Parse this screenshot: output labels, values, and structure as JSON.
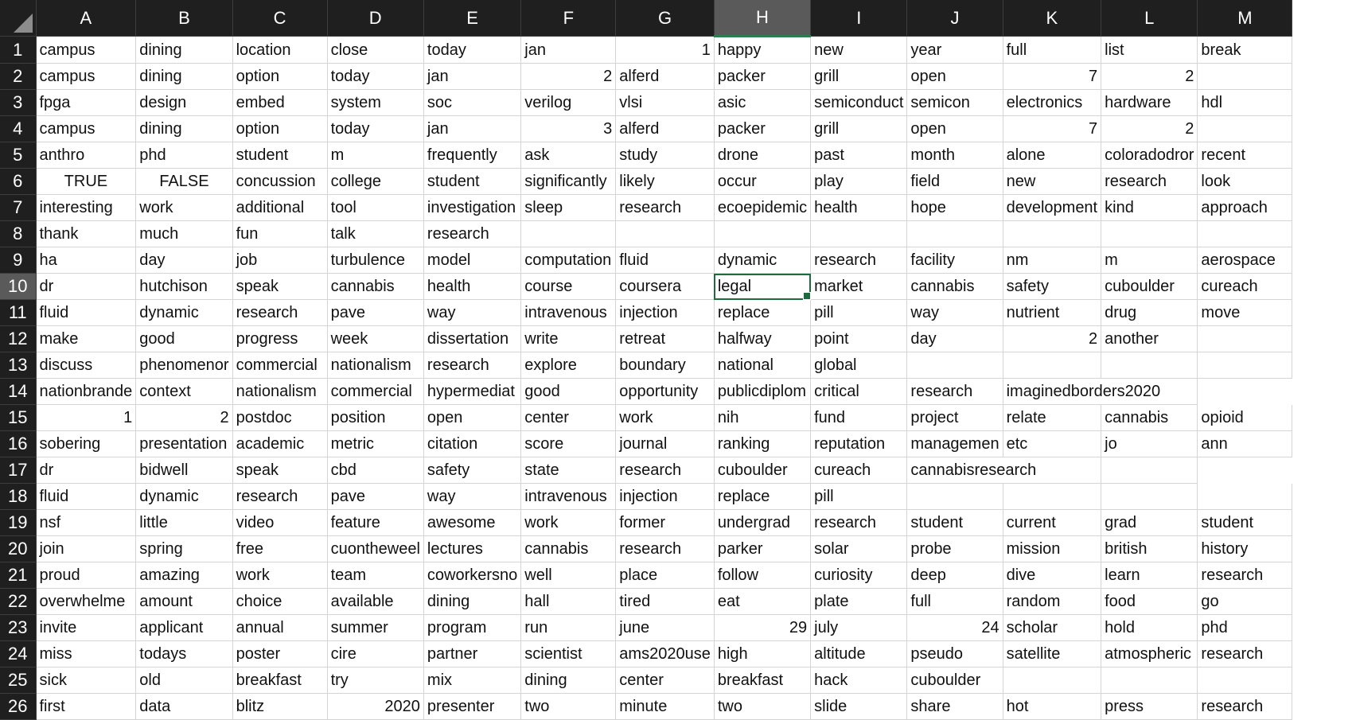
{
  "columns": [
    "A",
    "B",
    "C",
    "D",
    "E",
    "F",
    "G",
    "H",
    "I",
    "J",
    "K",
    "L",
    "M"
  ],
  "selected_column": "H",
  "selected_row": 10,
  "rows": [
    {
      "n": "1",
      "cells": [
        {
          "v": "campus"
        },
        {
          "v": "dining"
        },
        {
          "v": "location"
        },
        {
          "v": "close"
        },
        {
          "v": "today"
        },
        {
          "v": "jan"
        },
        {
          "v": "1",
          "t": "num"
        },
        {
          "v": "happy"
        },
        {
          "v": "new"
        },
        {
          "v": "year"
        },
        {
          "v": "full"
        },
        {
          "v": "list"
        },
        {
          "v": "break"
        }
      ]
    },
    {
      "n": "2",
      "cells": [
        {
          "v": "campus"
        },
        {
          "v": "dining"
        },
        {
          "v": "option"
        },
        {
          "v": "today"
        },
        {
          "v": "jan"
        },
        {
          "v": "2",
          "t": "num"
        },
        {
          "v": "alferd"
        },
        {
          "v": "packer"
        },
        {
          "v": "grill"
        },
        {
          "v": "open"
        },
        {
          "v": "7",
          "t": "num"
        },
        {
          "v": "2",
          "t": "num"
        },
        {
          "v": ""
        }
      ]
    },
    {
      "n": "3",
      "cells": [
        {
          "v": "fpga"
        },
        {
          "v": "design"
        },
        {
          "v": "embed"
        },
        {
          "v": "system"
        },
        {
          "v": "soc"
        },
        {
          "v": "verilog"
        },
        {
          "v": "vlsi"
        },
        {
          "v": "asic"
        },
        {
          "v": "semiconduct"
        },
        {
          "v": "semicon"
        },
        {
          "v": "electronics"
        },
        {
          "v": "hardware"
        },
        {
          "v": "hdl"
        }
      ]
    },
    {
      "n": "4",
      "cells": [
        {
          "v": "campus"
        },
        {
          "v": "dining"
        },
        {
          "v": "option"
        },
        {
          "v": "today"
        },
        {
          "v": "jan"
        },
        {
          "v": "3",
          "t": "num"
        },
        {
          "v": "alferd"
        },
        {
          "v": "packer"
        },
        {
          "v": "grill"
        },
        {
          "v": "open"
        },
        {
          "v": "7",
          "t": "num"
        },
        {
          "v": "2",
          "t": "num"
        },
        {
          "v": ""
        }
      ]
    },
    {
      "n": "5",
      "cells": [
        {
          "v": "anthro"
        },
        {
          "v": "phd"
        },
        {
          "v": "student"
        },
        {
          "v": "m"
        },
        {
          "v": "frequently"
        },
        {
          "v": "ask"
        },
        {
          "v": "study"
        },
        {
          "v": "drone"
        },
        {
          "v": "past"
        },
        {
          "v": "month"
        },
        {
          "v": "alone"
        },
        {
          "v": "coloradodror"
        },
        {
          "v": "recent"
        }
      ]
    },
    {
      "n": "6",
      "cells": [
        {
          "v": "TRUE",
          "t": "bool"
        },
        {
          "v": "FALSE",
          "t": "bool"
        },
        {
          "v": "concussion"
        },
        {
          "v": "college"
        },
        {
          "v": "student"
        },
        {
          "v": "significantly"
        },
        {
          "v": "likely"
        },
        {
          "v": "occur"
        },
        {
          "v": "play"
        },
        {
          "v": "field"
        },
        {
          "v": "new"
        },
        {
          "v": "research"
        },
        {
          "v": "look"
        }
      ]
    },
    {
      "n": "7",
      "cells": [
        {
          "v": "interesting"
        },
        {
          "v": "work"
        },
        {
          "v": "additional"
        },
        {
          "v": "tool"
        },
        {
          "v": "investigation"
        },
        {
          "v": "sleep"
        },
        {
          "v": "research"
        },
        {
          "v": "ecoepidemic"
        },
        {
          "v": "health"
        },
        {
          "v": "hope"
        },
        {
          "v": "development"
        },
        {
          "v": "kind"
        },
        {
          "v": "approach"
        }
      ]
    },
    {
      "n": "8",
      "cells": [
        {
          "v": "thank"
        },
        {
          "v": "much"
        },
        {
          "v": "fun"
        },
        {
          "v": "talk"
        },
        {
          "v": "research"
        },
        {
          "v": ""
        },
        {
          "v": ""
        },
        {
          "v": ""
        },
        {
          "v": ""
        },
        {
          "v": ""
        },
        {
          "v": ""
        },
        {
          "v": ""
        },
        {
          "v": ""
        }
      ]
    },
    {
      "n": "9",
      "cells": [
        {
          "v": "ha"
        },
        {
          "v": "day"
        },
        {
          "v": "job"
        },
        {
          "v": "turbulence"
        },
        {
          "v": "model"
        },
        {
          "v": "computation"
        },
        {
          "v": "fluid"
        },
        {
          "v": "dynamic"
        },
        {
          "v": "research"
        },
        {
          "v": "facility"
        },
        {
          "v": "nm"
        },
        {
          "v": "m"
        },
        {
          "v": "aerospace"
        }
      ]
    },
    {
      "n": "10",
      "cells": [
        {
          "v": "dr"
        },
        {
          "v": "hutchison"
        },
        {
          "v": "speak"
        },
        {
          "v": "cannabis"
        },
        {
          "v": "health"
        },
        {
          "v": "course"
        },
        {
          "v": "coursera"
        },
        {
          "v": "legal"
        },
        {
          "v": "market"
        },
        {
          "v": "cannabis"
        },
        {
          "v": "safety"
        },
        {
          "v": "cuboulder"
        },
        {
          "v": "cureach"
        }
      ]
    },
    {
      "n": "11",
      "cells": [
        {
          "v": "fluid"
        },
        {
          "v": "dynamic"
        },
        {
          "v": "research"
        },
        {
          "v": "pave"
        },
        {
          "v": "way"
        },
        {
          "v": "intravenous"
        },
        {
          "v": "injection"
        },
        {
          "v": "replace"
        },
        {
          "v": "pill"
        },
        {
          "v": "way"
        },
        {
          "v": "nutrient"
        },
        {
          "v": "drug"
        },
        {
          "v": "move"
        }
      ]
    },
    {
      "n": "12",
      "cells": [
        {
          "v": "make"
        },
        {
          "v": "good"
        },
        {
          "v": "progress"
        },
        {
          "v": "week"
        },
        {
          "v": "dissertation"
        },
        {
          "v": "write"
        },
        {
          "v": "retreat"
        },
        {
          "v": "halfway"
        },
        {
          "v": "point"
        },
        {
          "v": "day"
        },
        {
          "v": "2",
          "t": "num"
        },
        {
          "v": "another"
        },
        {
          "v": ""
        }
      ]
    },
    {
      "n": "13",
      "cells": [
        {
          "v": "discuss"
        },
        {
          "v": "phenomenor"
        },
        {
          "v": "commercial"
        },
        {
          "v": "nationalism"
        },
        {
          "v": "research"
        },
        {
          "v": "explore"
        },
        {
          "v": "boundary"
        },
        {
          "v": "national"
        },
        {
          "v": "global"
        },
        {
          "v": ""
        },
        {
          "v": ""
        },
        {
          "v": ""
        },
        {
          "v": ""
        }
      ]
    },
    {
      "n": "14",
      "cells": [
        {
          "v": "nationbrande"
        },
        {
          "v": "context"
        },
        {
          "v": "nationalism"
        },
        {
          "v": "commercial"
        },
        {
          "v": "hypermediat"
        },
        {
          "v": "good"
        },
        {
          "v": "opportunity"
        },
        {
          "v": "publicdiplom"
        },
        {
          "v": "critical"
        },
        {
          "v": "research"
        },
        {
          "v": "imaginedborders2020",
          "span": 2
        },
        {
          "v": ""
        }
      ]
    },
    {
      "n": "15",
      "cells": [
        {
          "v": "1",
          "t": "num"
        },
        {
          "v": "2",
          "t": "num"
        },
        {
          "v": "postdoc"
        },
        {
          "v": "position"
        },
        {
          "v": "open"
        },
        {
          "v": "center"
        },
        {
          "v": "work"
        },
        {
          "v": "nih"
        },
        {
          "v": "fund"
        },
        {
          "v": "project"
        },
        {
          "v": "relate"
        },
        {
          "v": "cannabis"
        },
        {
          "v": "opioid"
        }
      ]
    },
    {
      "n": "16",
      "cells": [
        {
          "v": "sobering"
        },
        {
          "v": "presentation"
        },
        {
          "v": "academic"
        },
        {
          "v": "metric"
        },
        {
          "v": "citation"
        },
        {
          "v": "score"
        },
        {
          "v": "journal"
        },
        {
          "v": "ranking"
        },
        {
          "v": "reputation"
        },
        {
          "v": "managemen"
        },
        {
          "v": "etc"
        },
        {
          "v": "jo"
        },
        {
          "v": "ann"
        }
      ]
    },
    {
      "n": "17",
      "cells": [
        {
          "v": "dr"
        },
        {
          "v": "bidwell"
        },
        {
          "v": "speak"
        },
        {
          "v": "cbd"
        },
        {
          "v": "safety"
        },
        {
          "v": "state"
        },
        {
          "v": "research"
        },
        {
          "v": "cuboulder"
        },
        {
          "v": "cureach"
        },
        {
          "v": "cannabisresearch",
          "span": 2
        },
        {
          "v": ""
        },
        {
          "v": ""
        }
      ]
    },
    {
      "n": "18",
      "cells": [
        {
          "v": "fluid"
        },
        {
          "v": "dynamic"
        },
        {
          "v": "research"
        },
        {
          "v": "pave"
        },
        {
          "v": "way"
        },
        {
          "v": "intravenous"
        },
        {
          "v": "injection"
        },
        {
          "v": "replace"
        },
        {
          "v": "pill"
        },
        {
          "v": ""
        },
        {
          "v": ""
        },
        {
          "v": ""
        },
        {
          "v": ""
        }
      ]
    },
    {
      "n": "19",
      "cells": [
        {
          "v": "nsf"
        },
        {
          "v": "little"
        },
        {
          "v": "video"
        },
        {
          "v": "feature"
        },
        {
          "v": "awesome"
        },
        {
          "v": "work"
        },
        {
          "v": "former"
        },
        {
          "v": "undergrad"
        },
        {
          "v": "research"
        },
        {
          "v": "student"
        },
        {
          "v": "current"
        },
        {
          "v": "grad"
        },
        {
          "v": "student"
        }
      ]
    },
    {
      "n": "20",
      "cells": [
        {
          "v": "join"
        },
        {
          "v": "spring"
        },
        {
          "v": "free"
        },
        {
          "v": "cuontheweel"
        },
        {
          "v": "lectures"
        },
        {
          "v": "cannabis"
        },
        {
          "v": "research"
        },
        {
          "v": "parker"
        },
        {
          "v": "solar"
        },
        {
          "v": "probe"
        },
        {
          "v": "mission"
        },
        {
          "v": "british"
        },
        {
          "v": "history"
        }
      ]
    },
    {
      "n": "21",
      "cells": [
        {
          "v": "proud"
        },
        {
          "v": "amazing"
        },
        {
          "v": "work"
        },
        {
          "v": "team"
        },
        {
          "v": "coworkersno"
        },
        {
          "v": "well"
        },
        {
          "v": "place"
        },
        {
          "v": "follow"
        },
        {
          "v": "curiosity"
        },
        {
          "v": "deep"
        },
        {
          "v": "dive"
        },
        {
          "v": "learn"
        },
        {
          "v": "research"
        }
      ]
    },
    {
      "n": "22",
      "cells": [
        {
          "v": "overwhelme"
        },
        {
          "v": "amount"
        },
        {
          "v": "choice"
        },
        {
          "v": "available"
        },
        {
          "v": "dining"
        },
        {
          "v": "hall"
        },
        {
          "v": "tired"
        },
        {
          "v": "eat"
        },
        {
          "v": "plate"
        },
        {
          "v": "full"
        },
        {
          "v": "random"
        },
        {
          "v": "food"
        },
        {
          "v": "go"
        }
      ]
    },
    {
      "n": "23",
      "cells": [
        {
          "v": "invite"
        },
        {
          "v": "applicant"
        },
        {
          "v": "annual"
        },
        {
          "v": "summer"
        },
        {
          "v": "program"
        },
        {
          "v": "run"
        },
        {
          "v": "june"
        },
        {
          "v": "29",
          "t": "num"
        },
        {
          "v": "july"
        },
        {
          "v": "24",
          "t": "num"
        },
        {
          "v": "scholar"
        },
        {
          "v": "hold"
        },
        {
          "v": "phd"
        }
      ]
    },
    {
      "n": "24",
      "cells": [
        {
          "v": "miss"
        },
        {
          "v": "todays"
        },
        {
          "v": "poster"
        },
        {
          "v": "cire"
        },
        {
          "v": "partner"
        },
        {
          "v": "scientist"
        },
        {
          "v": "ams2020use"
        },
        {
          "v": "high"
        },
        {
          "v": "altitude"
        },
        {
          "v": "pseudo"
        },
        {
          "v": "satellite"
        },
        {
          "v": "atmospheric"
        },
        {
          "v": "research"
        }
      ]
    },
    {
      "n": "25",
      "cells": [
        {
          "v": "sick"
        },
        {
          "v": "old"
        },
        {
          "v": "breakfast"
        },
        {
          "v": "try"
        },
        {
          "v": "mix"
        },
        {
          "v": "dining"
        },
        {
          "v": "center"
        },
        {
          "v": "breakfast"
        },
        {
          "v": "hack"
        },
        {
          "v": "cuboulder"
        },
        {
          "v": ""
        },
        {
          "v": ""
        },
        {
          "v": ""
        }
      ]
    },
    {
      "n": "26",
      "cells": [
        {
          "v": "first"
        },
        {
          "v": "data"
        },
        {
          "v": "blitz"
        },
        {
          "v": "2020",
          "t": "num"
        },
        {
          "v": "presenter"
        },
        {
          "v": "two"
        },
        {
          "v": "minute"
        },
        {
          "v": "two"
        },
        {
          "v": "slide"
        },
        {
          "v": "share"
        },
        {
          "v": "hot"
        },
        {
          "v": "press"
        },
        {
          "v": "research"
        }
      ]
    }
  ]
}
